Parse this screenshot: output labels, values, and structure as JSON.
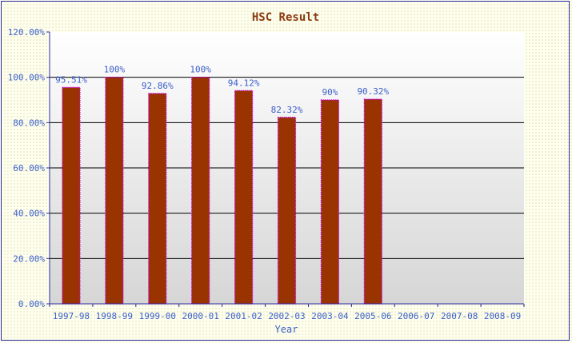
{
  "chart_data": {
    "type": "bar",
    "title": "HSC Result",
    "xlabel": "Year",
    "ylabel": "",
    "categories": [
      "1997-98",
      "1998-99",
      "1999-00",
      "2000-01",
      "2001-02",
      "2002-03",
      "2003-04",
      "2005-06",
      "2006-07",
      "2007-08",
      "2008-09"
    ],
    "values": [
      95.51,
      100,
      92.86,
      100,
      94.12,
      82.32,
      90,
      90.32,
      null,
      null,
      null
    ],
    "value_labels": [
      "95.51%",
      "100%",
      "92.86%",
      "100%",
      "94.12%",
      "82.32%",
      "90%",
      "90.32%",
      "",
      "",
      ""
    ],
    "ylim": [
      0,
      120
    ],
    "yticks": [
      0,
      20,
      40,
      60,
      80,
      100,
      120
    ],
    "ytick_labels": [
      "0.00%",
      "20.00%",
      "40.00%",
      "60.00%",
      "80.00%",
      "100.00%",
      "120.00%"
    ],
    "grid": true,
    "legend": "none",
    "colors": {
      "bar_fill": "#993300",
      "bar_outline": "#cc00cc",
      "text": "#3a5fc8",
      "title": "#8b3a0e",
      "axis": "#2a2aa0"
    }
  }
}
